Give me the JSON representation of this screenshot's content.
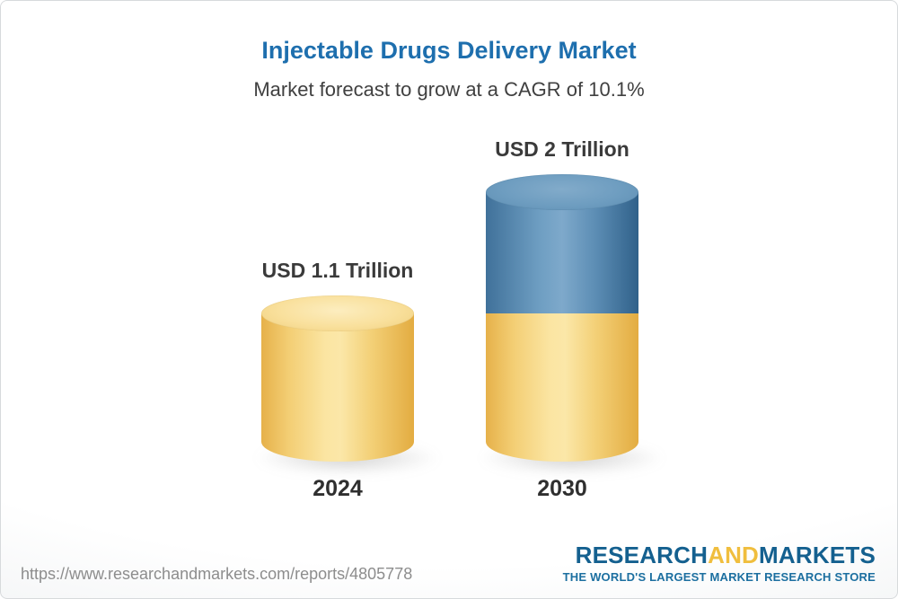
{
  "header": {
    "title": "Injectable Drugs Delivery Market",
    "subtitle": "Market forecast to grow at a CAGR of 10.1%"
  },
  "chart_data": {
    "type": "bar",
    "variant": "3d-cylinder-stacked",
    "unit": "USD Trillion",
    "title": "Injectable Drugs Delivery Market",
    "note": "Market forecast to grow at a CAGR of 10.1%",
    "cagr_pct": 10.1,
    "categories": [
      "2024",
      "2030"
    ],
    "values": [
      1.1,
      2
    ],
    "value_labels": [
      "USD 1.1 Trillion",
      "USD 2 Trillion"
    ],
    "ylim": [
      0,
      2
    ],
    "grid": false,
    "legend": "none",
    "bars": [
      {
        "category": "2024",
        "label": "USD 1.1 Trillion",
        "total": 1.1,
        "segments": [
          {
            "name": "base-market",
            "value": 1.1,
            "color": "#F8DE94"
          }
        ]
      },
      {
        "category": "2030",
        "label": "USD 2 Trillion",
        "total": 2,
        "segments": [
          {
            "name": "base-market",
            "value": 1.1,
            "color": "#F8DE94"
          },
          {
            "name": "forecast-growth",
            "value": 0.9,
            "color": "#4E83AC"
          }
        ]
      }
    ]
  },
  "footer": {
    "url": "https://www.researchandmarkets.com/reports/4805778",
    "logo": {
      "research": "RESEARCH",
      "and": "AND",
      "markets": "MARKETS",
      "tagline": "THE WORLD'S LARGEST MARKET RESEARCH STORE"
    }
  },
  "colors": {
    "title_blue": "#1E6FAE",
    "text_dark": "#3A3A3A",
    "bar_yellow": "#F6CE6B",
    "bar_blue": "#4379A4",
    "logo_blue": "#14608F",
    "logo_yellow": "#F0BE3E",
    "url_gray": "#8D8D8D"
  }
}
